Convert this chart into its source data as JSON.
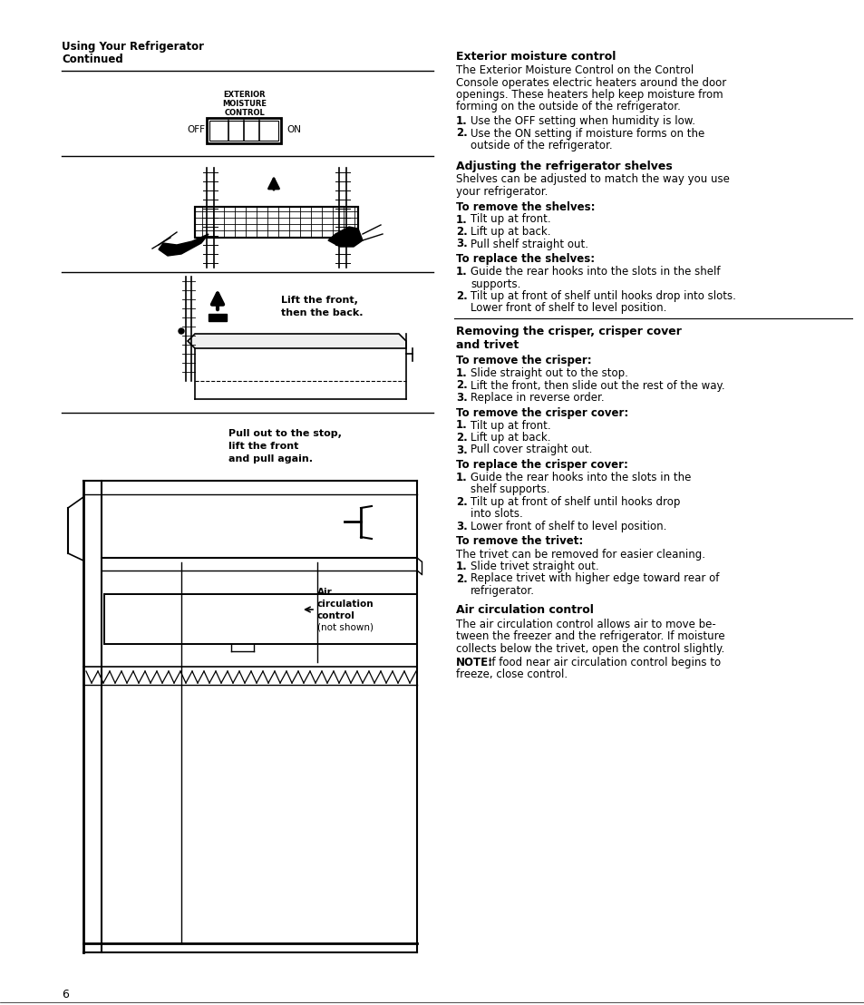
{
  "bg_color": "#ffffff",
  "page_number": "6",
  "header_bold": "Using Your Refrigerator",
  "header_bold2": "Continued",
  "section1_title": "Exterior moisture control",
  "section1_body_lines": [
    "The Exterior Moisture Control on the Control",
    "Console operates electric heaters around the door",
    "openings. These heaters help keep moisture from",
    "forming on the outside of the refrigerator."
  ],
  "section1_items": [
    [
      "Use the OFF setting when humidity is low."
    ],
    [
      "Use the ON setting if moisture forms on the",
      "    outside of the refrigerator."
    ]
  ],
  "section2_title": "Adjusting the refrigerator shelves",
  "section2_body_lines": [
    "Shelves can be adjusted to match the way you use",
    "your refrigerator."
  ],
  "section2_sub1": "To remove the shelves:",
  "section2_sub1_items": [
    [
      "Tilt up at front."
    ],
    [
      "Lift up at back."
    ],
    [
      "Pull shelf straight out."
    ]
  ],
  "section2_sub2": "To replace the shelves:",
  "section2_sub2_items": [
    [
      "Guide the rear hooks into the slots in the shelf",
      "    supports."
    ],
    [
      "Tilt up at front of shelf until hooks drop into slots.",
      "    Lower front of shelf to level position."
    ]
  ],
  "section3_title_lines": [
    "Removing the crisper, crisper cover",
    "and trivet"
  ],
  "section3_sub1": "To remove the crisper:",
  "section3_sub1_items": [
    [
      "Slide straight out to the stop."
    ],
    [
      "Lift the front, then slide out the rest of the way."
    ],
    [
      "Replace in reverse order."
    ]
  ],
  "section3_sub2": "To remove the crisper cover:",
  "section3_sub2_items": [
    [
      "Tilt up at front."
    ],
    [
      "Lift up at back."
    ],
    [
      "Pull cover straight out."
    ]
  ],
  "section3_sub3": "To replace the crisper cover:",
  "section3_sub3_items": [
    [
      "Guide the rear hooks into the slots in the",
      "    shelf supports."
    ],
    [
      "Tilt up at front of shelf until hooks drop",
      "    into slots."
    ],
    [
      "Lower front of shelf to level position."
    ]
  ],
  "section3_sub4": "To remove the trivet:",
  "section3_sub4_body": "The trivet can be removed for easier cleaning.",
  "section3_sub4_items": [
    [
      "Slide trivet straight out."
    ],
    [
      "Replace trivet with higher edge toward rear of",
      "    refrigerator."
    ]
  ],
  "section4_title": "Air circulation control",
  "section4_body_lines": [
    "The air circulation control allows air to move be-",
    "tween the freezer and the refrigerator. If moisture",
    "collects below the trivet, open the control slightly."
  ],
  "section4_note_lines": [
    "NOTE: If food near air circulation control begins to",
    "freeze, close control."
  ]
}
